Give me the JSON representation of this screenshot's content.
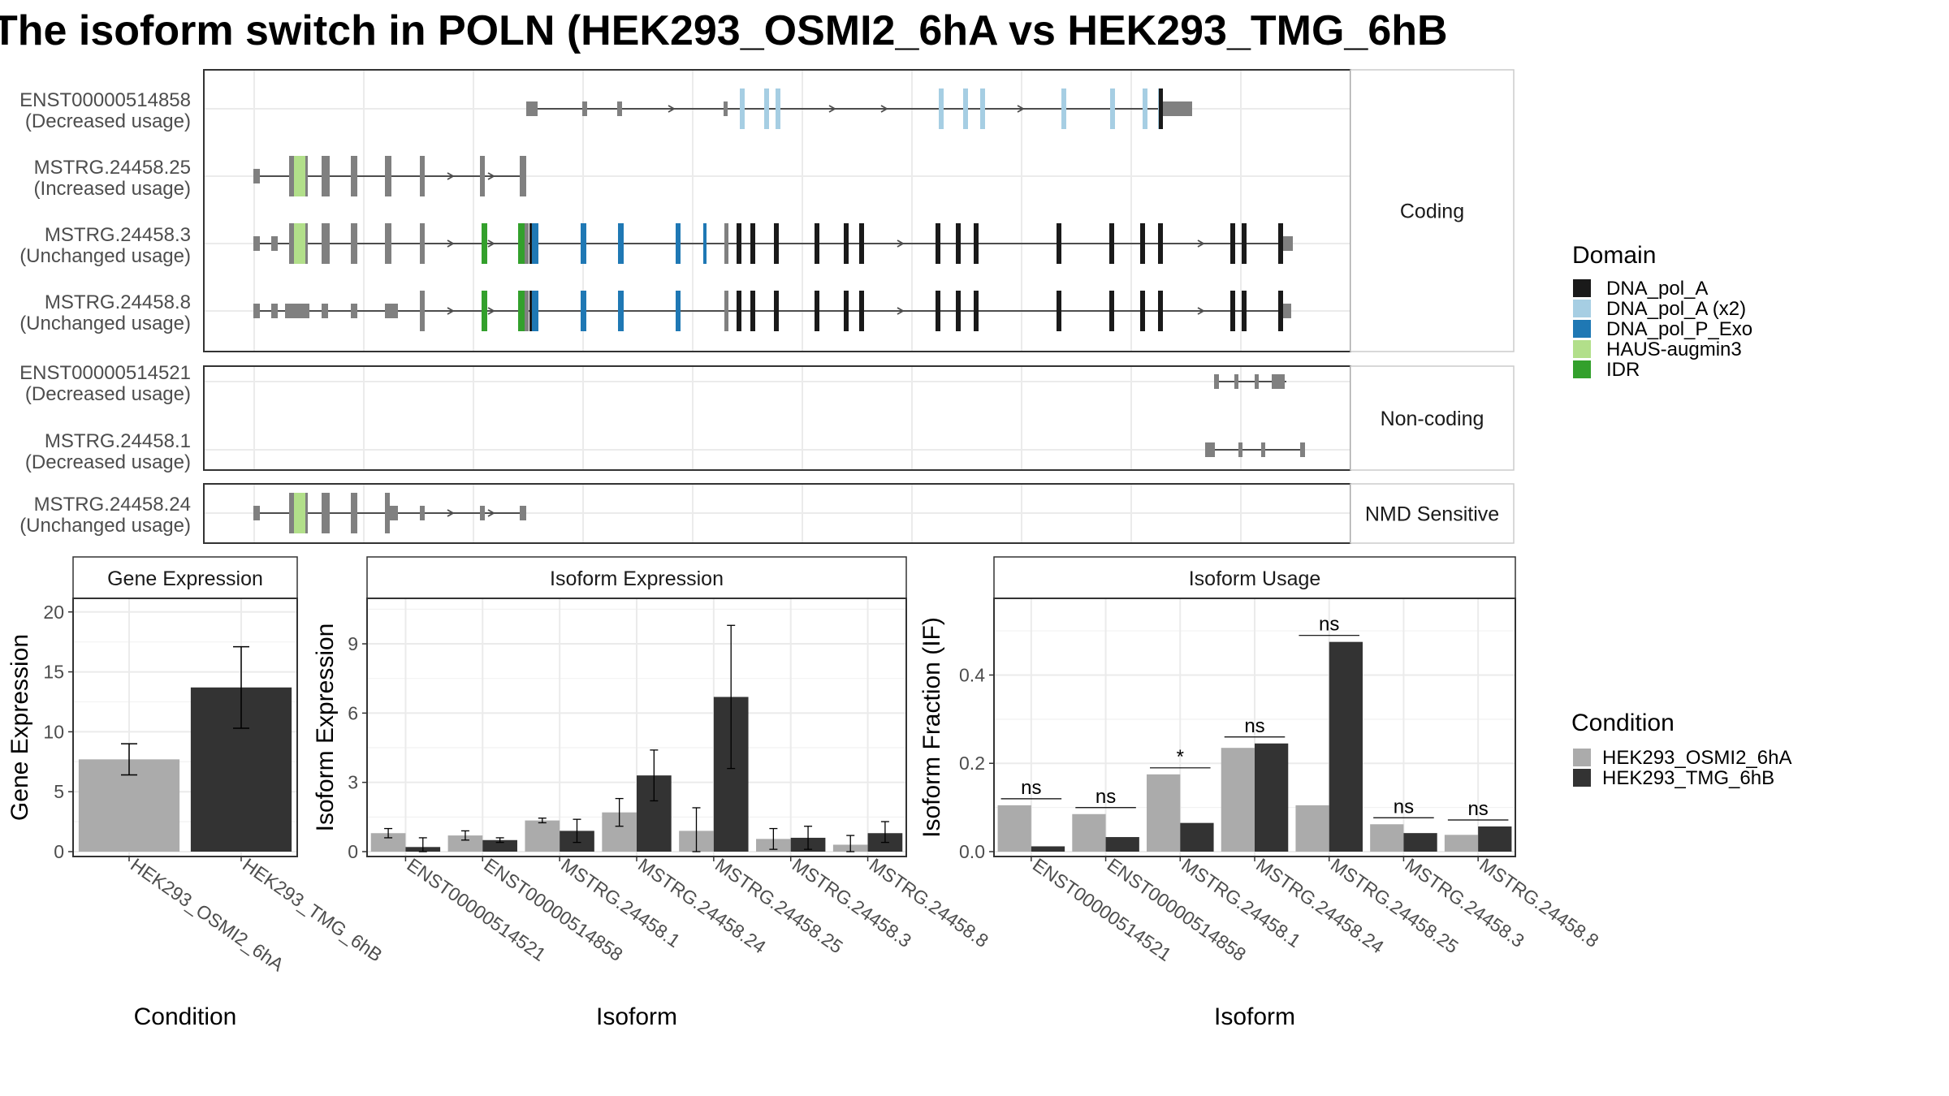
{
  "title": "The isoform switch in POLN (HEK293_OSMI2_6hA vs HEK293_TMG_6hB",
  "colors": {
    "intron": "#4d4d4d",
    "exon_plain": "#808080",
    "cond_a": "#ababab",
    "cond_b": "#333333",
    "DNA_pol_A": "#1a1a1a",
    "DNA_pol_A (x2)": "#a6cee3",
    "DNA_pol_P_Exo": "#1f78b4",
    "HAUS-augmin3": "#b2df8a",
    "IDR": "#33a02c"
  },
  "structure": {
    "facets": [
      "Coding",
      "Non-coding",
      "NMD Sensitive"
    ],
    "isoforms": [
      {
        "id": "ENST00000514858",
        "usage": "(Decreased usage)",
        "group": 0
      },
      {
        "id": "MSTRG.24458.25",
        "usage": "(Increased usage)",
        "group": 0
      },
      {
        "id": "MSTRG.24458.3",
        "usage": "(Unchanged usage)",
        "group": 0
      },
      {
        "id": "MSTRG.24458.8",
        "usage": "(Unchanged usage)",
        "group": 0
      },
      {
        "id": "ENST00000514521",
        "usage": "(Decreased usage)",
        "group": 1
      },
      {
        "id": "MSTRG.24458.1",
        "usage": "(Decreased usage)",
        "group": 1
      },
      {
        "id": "MSTRG.24458.24",
        "usage": "(Unchanged usage)",
        "group": 2
      }
    ]
  },
  "legend_domain": {
    "title": "Domain",
    "items": [
      "DNA_pol_A",
      "DNA_pol_A (x2)",
      "DNA_pol_P_Exo",
      "HAUS-augmin3",
      "IDR"
    ]
  },
  "legend_condition": {
    "title": "Condition",
    "items": [
      "HEK293_OSMI2_6hA",
      "HEK293_TMG_6hB"
    ]
  },
  "chart_data": [
    {
      "type": "bar",
      "title": "Gene Expression",
      "xlabel": "Condition",
      "ylabel": "Gene Expression",
      "ylim": [
        0,
        21
      ],
      "yticks": [
        0,
        5,
        10,
        15,
        20
      ],
      "categories": [
        "HEK293_OSMI2_6hA",
        "HEK293_TMG_6hB"
      ],
      "values": [
        7.7,
        13.7
      ],
      "err_low": [
        6.4,
        10.3
      ],
      "err_high": [
        9.0,
        17.1
      ]
    },
    {
      "type": "bar",
      "title": "Isoform Expression",
      "xlabel": "Isoform",
      "ylabel": "Isoform Expression",
      "ylim": [
        0,
        10.9
      ],
      "yticks": [
        0,
        3,
        6,
        9
      ],
      "categories": [
        "ENST00000514521",
        "ENST00000514858",
        "MSTRG.24458.1",
        "MSTRG.24458.24",
        "MSTRG.24458.25",
        "MSTRG.24458.3",
        "MSTRG.24458.8"
      ],
      "series": [
        {
          "name": "HEK293_OSMI2_6hA",
          "values": [
            0.8,
            0.7,
            1.35,
            1.7,
            0.9,
            0.55,
            0.3
          ],
          "err_low": [
            0.6,
            0.5,
            1.25,
            1.1,
            0.0,
            0.1,
            0.0
          ],
          "err_high": [
            1.0,
            0.9,
            1.45,
            2.3,
            1.9,
            1.0,
            0.7
          ]
        },
        {
          "name": "HEK293_TMG_6hB",
          "values": [
            0.2,
            0.5,
            0.9,
            3.3,
            6.7,
            0.6,
            0.8
          ],
          "err_low": [
            0.0,
            0.4,
            0.4,
            2.2,
            3.6,
            0.1,
            0.4
          ],
          "err_high": [
            0.6,
            0.6,
            1.4,
            4.4,
            9.8,
            1.1,
            1.3
          ]
        }
      ]
    },
    {
      "type": "bar",
      "title": "Isoform Usage",
      "xlabel": "Isoform",
      "ylabel": "Isoform Fraction (IF)",
      "ylim": [
        0,
        0.57
      ],
      "yticks": [
        0.0,
        0.2,
        0.4
      ],
      "ytick_labels": [
        "0.0",
        "0.2",
        "0.4"
      ],
      "categories": [
        "ENST00000514521",
        "ENST00000514858",
        "MSTRG.24458.1",
        "MSTRG.24458.24",
        "MSTRG.24458.25",
        "MSTRG.24458.3",
        "MSTRG.24458.8"
      ],
      "series": [
        {
          "name": "HEK293_OSMI2_6hA",
          "values": [
            0.105,
            0.085,
            0.175,
            0.235,
            0.105,
            0.062,
            0.038
          ]
        },
        {
          "name": "HEK293_TMG_6hB",
          "values": [
            0.012,
            0.033,
            0.065,
            0.245,
            0.475,
            0.042,
            0.057
          ]
        }
      ],
      "significance": [
        "ns",
        "ns",
        "*",
        "ns",
        "ns",
        "ns",
        "ns"
      ]
    }
  ]
}
